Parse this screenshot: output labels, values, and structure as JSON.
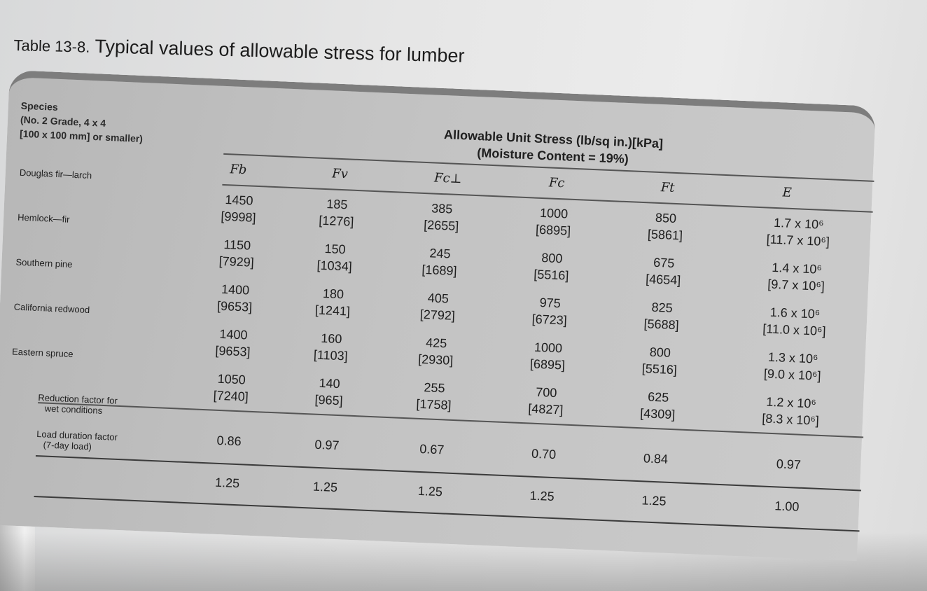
{
  "title": {
    "number": "Table 13-8.",
    "text": "Typical values of allowable stress for lumber"
  },
  "header": {
    "species_lines": [
      "Species",
      "(No. 2 Grade, 4 x 4",
      "[100 x 100 mm] or smaller)"
    ],
    "stress_lines": [
      "Allowable Unit Stress (lb/sq in.)[kPa]",
      "(Moisture Content = 19%)"
    ],
    "columns": {
      "fb": "Fb",
      "fv": "Fv",
      "fcp": "Fc⊥",
      "fc": "Fc",
      "ft": "Ft",
      "e": "E"
    }
  },
  "rows": [
    {
      "species": "Douglas fir—larch",
      "fb": [
        "1450",
        "[9998]"
      ],
      "fv": [
        "185",
        "[1276]"
      ],
      "fcp": [
        "385",
        "[2655]"
      ],
      "fc": [
        "1000",
        "[6895]"
      ],
      "ft": [
        "850",
        "[5861]"
      ],
      "e": [
        "1.7 x 10⁶",
        "[11.7 x 10⁶]"
      ]
    },
    {
      "species": "Hemlock—fir",
      "fb": [
        "1150",
        "[7929]"
      ],
      "fv": [
        "150",
        "[1034]"
      ],
      "fcp": [
        "245",
        "[1689]"
      ],
      "fc": [
        "800",
        "[5516]"
      ],
      "ft": [
        "675",
        "[4654]"
      ],
      "e": [
        "1.4 x 10⁶",
        "[9.7 x 10⁶]"
      ]
    },
    {
      "species": "Southern pine",
      "fb": [
        "1400",
        "[9653]"
      ],
      "fv": [
        "180",
        "[1241]"
      ],
      "fcp": [
        "405",
        "[2792]"
      ],
      "fc": [
        "975",
        "[6723]"
      ],
      "ft": [
        "825",
        "[5688]"
      ],
      "e": [
        "1.6 x 10⁶",
        "[11.0 x 10⁶]"
      ]
    },
    {
      "species": "California redwood",
      "fb": [
        "1400",
        "[9653]"
      ],
      "fv": [
        "160",
        "[1103]"
      ],
      "fcp": [
        "425",
        "[2930]"
      ],
      "fc": [
        "1000",
        "[6895]"
      ],
      "ft": [
        "800",
        "[5516]"
      ],
      "e": [
        "1.3 x 10⁶",
        "[9.0 x 10⁶]"
      ]
    },
    {
      "species": "Eastern spruce",
      "fb": [
        "1050",
        "[7240]"
      ],
      "fv": [
        "140",
        "[965]"
      ],
      "fcp": [
        "255",
        "[1758]"
      ],
      "fc": [
        "700",
        "[4827]"
      ],
      "ft": [
        "625",
        "[4309]"
      ],
      "e": [
        "1.2 x 10⁶",
        "[8.3 x 10⁶]"
      ]
    }
  ],
  "factors": [
    {
      "label_lines": [
        "Reduction factor for",
        "wet conditions"
      ],
      "values": [
        "0.86",
        "0.97",
        "0.67",
        "0.70",
        "0.84",
        "0.97"
      ]
    },
    {
      "label_lines": [
        "Load duration factor",
        "(7-day load)"
      ],
      "values": [
        "1.25",
        "1.25",
        "1.25",
        "1.25",
        "1.25",
        "1.00"
      ]
    }
  ]
}
